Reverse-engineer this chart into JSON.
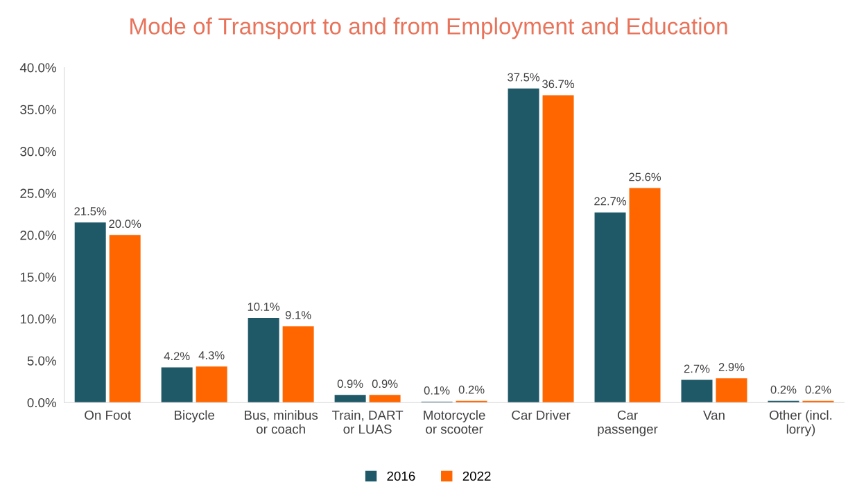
{
  "chart_data": {
    "type": "bar",
    "title": "Mode of Transport to and from Employment and Education",
    "categories": [
      "On Foot",
      "Bicycle",
      "Bus, minibus\nor coach",
      "Train, DART\nor LUAS",
      "Motorcycle\nor scooter",
      "Car Driver",
      "Car\npassenger",
      "Van",
      "Other (incl.\nlorry)"
    ],
    "series": [
      {
        "name": "2016",
        "color": "#1f5968",
        "values": [
          21.5,
          4.2,
          10.1,
          0.9,
          0.1,
          37.5,
          22.7,
          2.7,
          0.2
        ],
        "value_labels": [
          "21.5%",
          "4.2%",
          "10.1%",
          "0.9%",
          "0.1%",
          "37.5%",
          "22.7%",
          "2.7%",
          "0.2%"
        ]
      },
      {
        "name": "2022",
        "color": "#ff6600",
        "values": [
          20.0,
          4.3,
          9.1,
          0.9,
          0.2,
          36.7,
          25.6,
          2.9,
          0.2
        ],
        "value_labels": [
          "20.0%",
          "4.3%",
          "9.1%",
          "0.9%",
          "0.2%",
          "36.7%",
          "25.6%",
          "2.9%",
          "0.2%"
        ]
      }
    ],
    "ylim": [
      0,
      40
    ],
    "yticks": [
      {
        "value": 0,
        "label": "0.0%"
      },
      {
        "value": 5,
        "label": "5.0%"
      },
      {
        "value": 10,
        "label": "10.0%"
      },
      {
        "value": 15,
        "label": "15.0%"
      },
      {
        "value": 20,
        "label": "20.0%"
      },
      {
        "value": 25,
        "label": "25.0%"
      },
      {
        "value": 30,
        "label": "30.0%"
      },
      {
        "value": 35,
        "label": "35.0%"
      },
      {
        "value": 40,
        "label": "40.0%"
      }
    ],
    "grid": false,
    "legend": "bottom"
  }
}
